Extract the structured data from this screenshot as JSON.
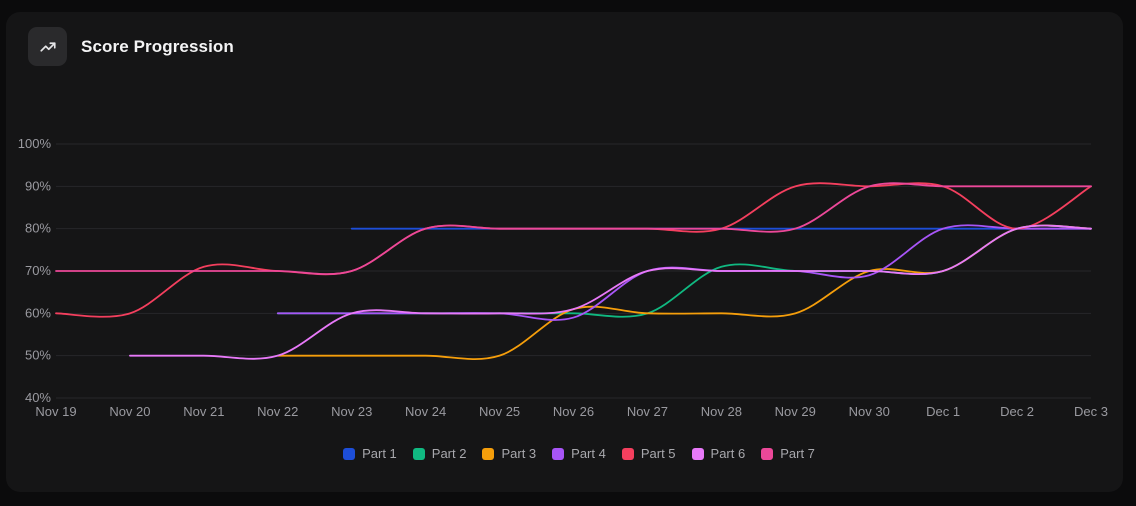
{
  "header": {
    "title": "Score Progression",
    "icon": "trending-up-icon"
  },
  "chart_data": {
    "type": "line",
    "title": "Score Progression",
    "xlabel": "",
    "ylabel": "",
    "ylim": [
      40,
      100
    ],
    "y_ticks": [
      "40%",
      "50%",
      "60%",
      "70%",
      "80%",
      "90%",
      "100%"
    ],
    "y_tick_values": [
      40,
      50,
      60,
      70,
      80,
      90,
      100
    ],
    "categories": [
      "Nov 19",
      "Nov 20",
      "Nov 21",
      "Nov 22",
      "Nov 23",
      "Nov 24",
      "Nov 25",
      "Nov 26",
      "Nov 27",
      "Nov 28",
      "Nov 29",
      "Nov 30",
      "Dec 1",
      "Dec 2",
      "Dec 3"
    ],
    "grid": true,
    "legend_position": "bottom-center",
    "series": [
      {
        "name": "Part 1",
        "color": "#1d4ed8",
        "values": [
          null,
          null,
          null,
          null,
          80,
          80,
          80,
          80,
          80,
          80,
          80,
          80,
          80,
          80,
          80
        ]
      },
      {
        "name": "Part 2",
        "color": "#10b981",
        "values": [
          null,
          null,
          null,
          60,
          60,
          60,
          60,
          60,
          60,
          71,
          70,
          70,
          70,
          80,
          80
        ]
      },
      {
        "name": "Part 3",
        "color": "#f59e0b",
        "values": [
          null,
          null,
          null,
          50,
          50,
          50,
          50,
          61,
          60,
          60,
          60,
          70,
          70,
          80,
          80
        ]
      },
      {
        "name": "Part 4",
        "color": "#a855f7",
        "values": [
          null,
          null,
          null,
          60,
          60,
          60,
          60,
          59,
          70,
          70,
          70,
          69,
          80,
          80,
          80
        ]
      },
      {
        "name": "Part 5",
        "color": "#f43f5e",
        "values": [
          60,
          60,
          71,
          70,
          70,
          80,
          80,
          80,
          80,
          80,
          90,
          90,
          90,
          80,
          90
        ]
      },
      {
        "name": "Part 6",
        "color": "#e879f9",
        "values": [
          null,
          50,
          50,
          50,
          60,
          60,
          60,
          61,
          70,
          70,
          70,
          70,
          70,
          80,
          80
        ]
      },
      {
        "name": "Part 7",
        "color": "#ec4899",
        "values": [
          70,
          70,
          70,
          70,
          70,
          80,
          80,
          80,
          80,
          80,
          80,
          90,
          90,
          90,
          90
        ]
      }
    ]
  }
}
